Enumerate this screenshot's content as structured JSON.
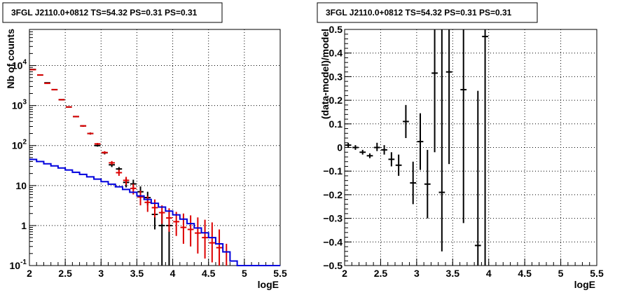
{
  "chart_data": [
    {
      "type": "scatter",
      "title": "3FGL J2110.0+0812 TS=54.32 PS=0.31 PS=0.31",
      "xlabel": "logE",
      "ylabel": "Nb of counts",
      "xlim": [
        2,
        5.5
      ],
      "ylim": [
        0.1,
        80000
      ],
      "yscale": "log",
      "grid": true,
      "x_ticks": [
        "2",
        "2.5",
        "3",
        "3.5",
        "4",
        "4.5",
        "5",
        "5.5"
      ],
      "y_ticks": [
        {
          "value": 0.1,
          "base": "10",
          "exp": "-1"
        },
        {
          "value": 1,
          "base": "1",
          "exp": ""
        },
        {
          "value": 10,
          "base": "10",
          "exp": ""
        },
        {
          "value": 100,
          "base": "10",
          "exp": "2"
        },
        {
          "value": 1000,
          "base": "10",
          "exp": "3"
        },
        {
          "value": 10000,
          "base": "10",
          "exp": "4"
        }
      ],
      "series": [
        {
          "color": "#000000",
          "style": "errorbar",
          "x": [
            2.05,
            2.15,
            2.25,
            2.35,
            2.45,
            2.55,
            2.65,
            2.75,
            2.85,
            2.95,
            3.05,
            3.15,
            3.25,
            3.35,
            3.45,
            3.55,
            3.65,
            3.75,
            3.85,
            3.95
          ],
          "y": [
            8000,
            5800,
            3700,
            2500,
            1400,
            920,
            530,
            310,
            200,
            100,
            66,
            33,
            26,
            12,
            11,
            7,
            5,
            1.9,
            1,
            1
          ],
          "ylo": [
            7800,
            5700,
            3600,
            2450,
            1380,
            900,
            510,
            295,
            188,
            94,
            60,
            29,
            23,
            9,
            8,
            4.8,
            3.2,
            0.8,
            0.1,
            0.1
          ],
          "yhi": [
            8200,
            5900,
            3800,
            2550,
            1420,
            940,
            550,
            325,
            212,
            106,
            72,
            37,
            29,
            15,
            14,
            9.5,
            7,
            3.2,
            2.3,
            2.3
          ]
        },
        {
          "color": "#dd0000",
          "style": "errorbar",
          "x": [
            2.05,
            2.15,
            2.25,
            2.35,
            2.45,
            2.55,
            2.65,
            2.75,
            2.85,
            2.95,
            3.05,
            3.15,
            3.25,
            3.35,
            3.45,
            3.55,
            3.65,
            3.75,
            3.85,
            3.95,
            4.05,
            4.15,
            4.25,
            4.35,
            4.45,
            4.55,
            4.65,
            4.75
          ],
          "y": [
            7900,
            5800,
            3600,
            2500,
            1400,
            920,
            530,
            310,
            200,
            110,
            67,
            37,
            21,
            13.5,
            8.5,
            5.2,
            3.8,
            2.8,
            2.1,
            1.55,
            1.25,
            0.9,
            0.8,
            0.65,
            0.5,
            0.37,
            0.28,
            0.22
          ],
          "ylo": [
            7800,
            5700,
            3500,
            2450,
            1380,
            900,
            510,
            295,
            190,
            104,
            62,
            33,
            17.5,
            10.5,
            6,
            3.2,
            2.2,
            1.6,
            1.1,
            0.7,
            0.55,
            0.35,
            0.3,
            0.2,
            0.15,
            0.12,
            0.1,
            0.1
          ],
          "yhi": [
            8000,
            5900,
            3700,
            2550,
            1420,
            940,
            550,
            325,
            210,
            116,
            72,
            41,
            25,
            16.5,
            11,
            7.5,
            5.5,
            4.5,
            3.2,
            2.7,
            2.2,
            2.0,
            1.8,
            1.6,
            1.4,
            1.2,
            0.8,
            0.35
          ]
        },
        {
          "color": "#0000dd",
          "style": "step",
          "edges": [
            2.0,
            2.1,
            2.2,
            2.3,
            2.4,
            2.5,
            2.6,
            2.7,
            2.8,
            2.9,
            3.0,
            3.1,
            3.2,
            3.3,
            3.4,
            3.5,
            3.6,
            3.7,
            3.8,
            3.9,
            4.0,
            4.1,
            4.2,
            4.3,
            4.4,
            4.5,
            4.6,
            4.7,
            4.8,
            4.9,
            5.0,
            5.1,
            5.2,
            5.3,
            5.4,
            5.5
          ],
          "values": [
            45,
            40,
            35,
            31,
            27.5,
            24.5,
            21.5,
            19,
            16.5,
            14.5,
            12.5,
            10.8,
            9.3,
            8.0,
            6.8,
            5.5,
            4.5,
            3.6,
            2.9,
            2.3,
            1.85,
            1.45,
            1.12,
            0.87,
            0.66,
            0.5,
            0.35,
            0.22,
            0.13,
            0.1,
            0.1,
            0.1,
            0.1,
            0.1,
            0.1
          ]
        }
      ]
    },
    {
      "type": "scatter",
      "title": "3FGL J2110.0+0812 TS=54.32 PS=0.31 PS=0.31",
      "xlabel": "logE",
      "ylabel": "(data-model)/model",
      "xlim": [
        2,
        5.5
      ],
      "ylim": [
        -0.5,
        0.5
      ],
      "grid": true,
      "x_ticks": [
        "2",
        "2.5",
        "3",
        "3.5",
        "4",
        "4.5",
        "5",
        "5.5"
      ],
      "y_ticks": [
        "−0.5",
        "−0.4",
        "−0.3",
        "−0.2",
        "−0.1",
        "0",
        "0.1",
        "0.2",
        "0.3",
        "0.4",
        "0.5"
      ],
      "series": [
        {
          "color": "#000000",
          "style": "errorbar",
          "x": [
            2.05,
            2.15,
            2.25,
            2.35,
            2.45,
            2.55,
            2.65,
            2.75,
            2.85,
            2.95,
            3.05,
            3.15,
            3.25,
            3.35,
            3.45,
            3.65,
            3.85,
            3.95
          ],
          "y": [
            0.01,
            0.0,
            -0.02,
            -0.035,
            0.0,
            -0.01,
            -0.05,
            -0.075,
            0.11,
            -0.15,
            0.025,
            -0.155,
            0.315,
            -0.19,
            0.32,
            0.245,
            -0.415,
            0.47
          ],
          "ylo": [
            0.0,
            -0.01,
            -0.03,
            -0.045,
            -0.015,
            -0.03,
            -0.08,
            -0.12,
            0.04,
            -0.24,
            -0.095,
            -0.3,
            -0.02,
            -0.44,
            -0.07,
            -0.32,
            -0.5,
            -0.5
          ],
          "yhi": [
            0.02,
            0.01,
            -0.01,
            -0.025,
            0.02,
            0.01,
            -0.02,
            -0.03,
            0.18,
            -0.06,
            0.145,
            -0.01,
            0.5,
            0.5,
            0.5,
            0.5,
            0.24,
            0.5
          ]
        }
      ]
    }
  ]
}
